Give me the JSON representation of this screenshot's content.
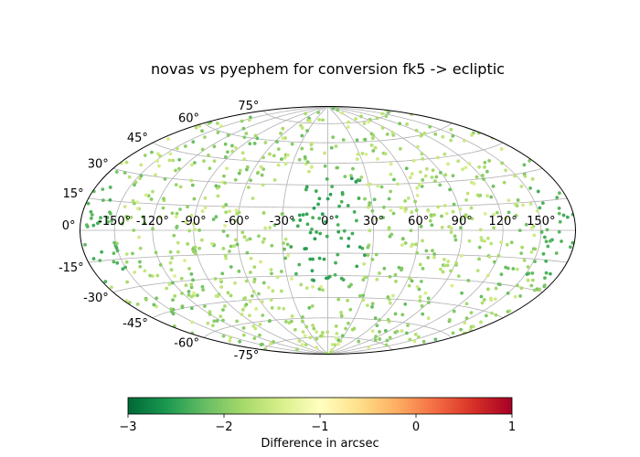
{
  "chart_data": {
    "type": "scatter",
    "projection": "hammer",
    "title": "novas vs pyephem for conversion fk5 -> ecliptic",
    "grid": true,
    "longitude_tick_labels": [
      "-150°",
      "-120°",
      "-90°",
      "-60°",
      "-30°",
      "0°",
      "30°",
      "60°",
      "90°",
      "120°",
      "150°"
    ],
    "latitude_tick_labels": [
      "-75°",
      "-60°",
      "-45°",
      "-30°",
      "-15°",
      "0°",
      "15°",
      "30°",
      "45°",
      "60°",
      "75°"
    ],
    "longitude_ticks_deg": [
      -150,
      -120,
      -90,
      -60,
      -30,
      0,
      30,
      60,
      90,
      120,
      150
    ],
    "latitude_ticks_deg": [
      -75,
      -60,
      -45,
      -30,
      -15,
      0,
      15,
      30,
      45,
      60,
      75
    ],
    "value_range": [
      -3,
      1
    ],
    "value_description": "Most points show differences near -1.3 to -2.2 arcsec; points near longitude 0° and at low latitude are darker green (about -2.4 arcsec).",
    "points_approx_count": 950,
    "colorbar": {
      "label": "Difference in arcsec",
      "ticks": [
        -3,
        -2,
        -1,
        0,
        1
      ],
      "tick_labels": [
        "−3",
        "−2",
        "−1",
        "0",
        "1"
      ],
      "colormap": "RdYlGn_r",
      "stops": [
        "#006837",
        "#1a9850",
        "#66bd63",
        "#a6d96a",
        "#d9ef8b",
        "#ffffbf",
        "#fee08b",
        "#fdae61",
        "#f46d43",
        "#d73027",
        "#a50026"
      ]
    }
  }
}
